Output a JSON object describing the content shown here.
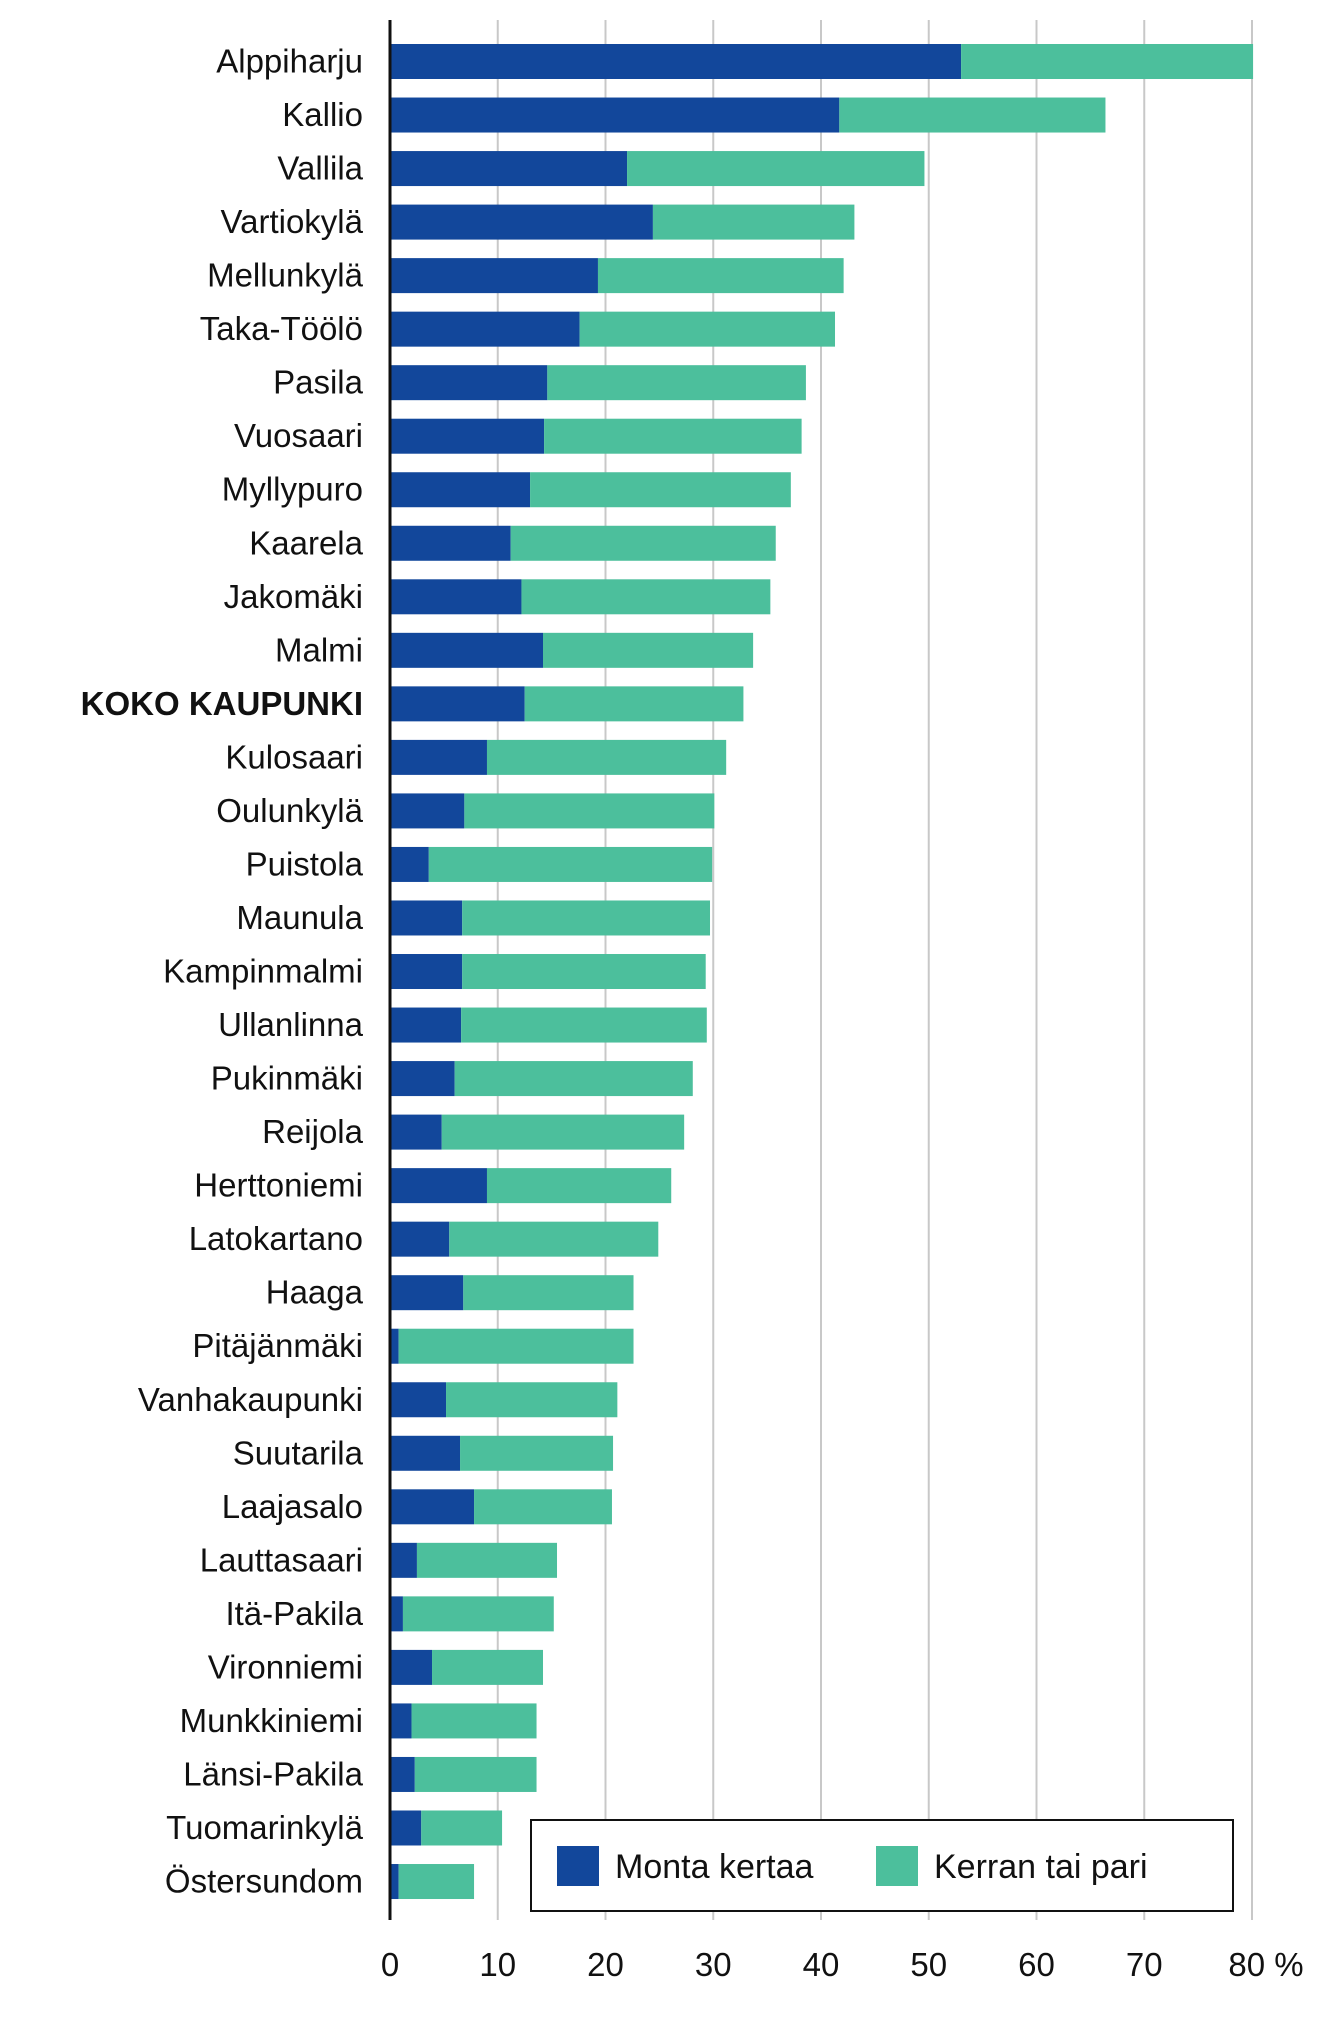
{
  "chart_data": {
    "type": "bar",
    "orientation": "horizontal",
    "stacked": true,
    "categories": [
      "Alppiharju",
      "Kallio",
      "Vallila",
      "Vartiokylä",
      "Mellunkylä",
      "Taka-Töölö",
      "Pasila",
      "Vuosaari",
      "Myllypuro",
      "Kaarela",
      "Jakomäki",
      "Malmi",
      "KOKO KAUPUNKI",
      "Kulosaari",
      "Oulunkylä",
      "Puistola",
      "Maunula",
      "Kampinmalmi",
      "Ullanlinna",
      "Pukinmäki",
      "Reijola",
      "Herttoniemi",
      "Latokartano",
      "Haaga",
      "Pitäjänmäki",
      "Vanhakaupunki",
      "Suutarila",
      "Laajasalo",
      "Lauttasaari",
      "Itä-Pakila",
      "Vironniemi",
      "Munkkiniemi",
      "Länsi-Pakila",
      "Tuomarinkylä",
      "Östersundom"
    ],
    "highlighted_category": "KOKO KAUPUNKI",
    "series": [
      {
        "name": "Monta kertaa",
        "color": "#12479b",
        "values": [
          53,
          41.7,
          22,
          24.4,
          19.3,
          17.6,
          14.6,
          14.3,
          13,
          11.2,
          12.2,
          14.2,
          12.5,
          9,
          6.9,
          3.6,
          6.7,
          6.7,
          6.6,
          6,
          4.8,
          9,
          5.5,
          6.8,
          0.8,
          5.2,
          6.5,
          7.8,
          2.5,
          1.2,
          3.9,
          2,
          2.3,
          2.9,
          0.8
        ]
      },
      {
        "name": "Kerran tai pari",
        "color": "#4cbf9c",
        "values": [
          27.1,
          24.7,
          27.6,
          18.7,
          22.8,
          23.7,
          24,
          23.9,
          24.2,
          24.6,
          23.1,
          19.5,
          20.3,
          22.2,
          23.2,
          26.3,
          23,
          22.6,
          22.8,
          22.1,
          22.5,
          17.1,
          19.4,
          15.8,
          21.8,
          15.9,
          14.2,
          12.8,
          13,
          14,
          10.3,
          11.6,
          11.3,
          7.5,
          7
        ]
      }
    ],
    "x_ticks": [
      "0",
      "10",
      "20",
      "30",
      "40",
      "50",
      "60",
      "70",
      "80 %"
    ],
    "xlim": [
      0,
      80
    ],
    "grid": true,
    "legend_position": "bottom-right"
  }
}
